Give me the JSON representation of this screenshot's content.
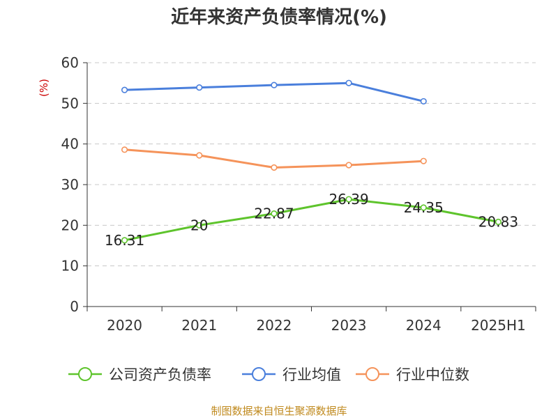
{
  "chart_data": {
    "type": "line",
    "title": "近年来资产负债率情况(%)",
    "y_unit": "(%)",
    "categories": [
      "2020",
      "2021",
      "2022",
      "2023",
      "2024",
      "2025H1"
    ],
    "ylim": [
      0,
      60
    ],
    "yticks": [
      0,
      10,
      20,
      30,
      40,
      50,
      60
    ],
    "grid": true,
    "legend_position": "bottom",
    "series": [
      {
        "name": "公司资产负债率",
        "color": "#5ec42c",
        "values": [
          16.31,
          20,
          22.87,
          26.39,
          24.35,
          20.83
        ],
        "labels": [
          "16.31",
          "20",
          "22.87",
          "26.39",
          "24.35",
          "20.83"
        ]
      },
      {
        "name": "行业均值",
        "color": "#4a7fdc",
        "values": [
          53.3,
          53.9,
          54.5,
          55.0,
          50.5,
          null
        ]
      },
      {
        "name": "行业中位数",
        "color": "#f5935a",
        "values": [
          38.6,
          37.2,
          34.2,
          34.8,
          35.8,
          null
        ]
      }
    ]
  },
  "footer": {
    "source": "制图数据来自恒生聚源数据库"
  }
}
